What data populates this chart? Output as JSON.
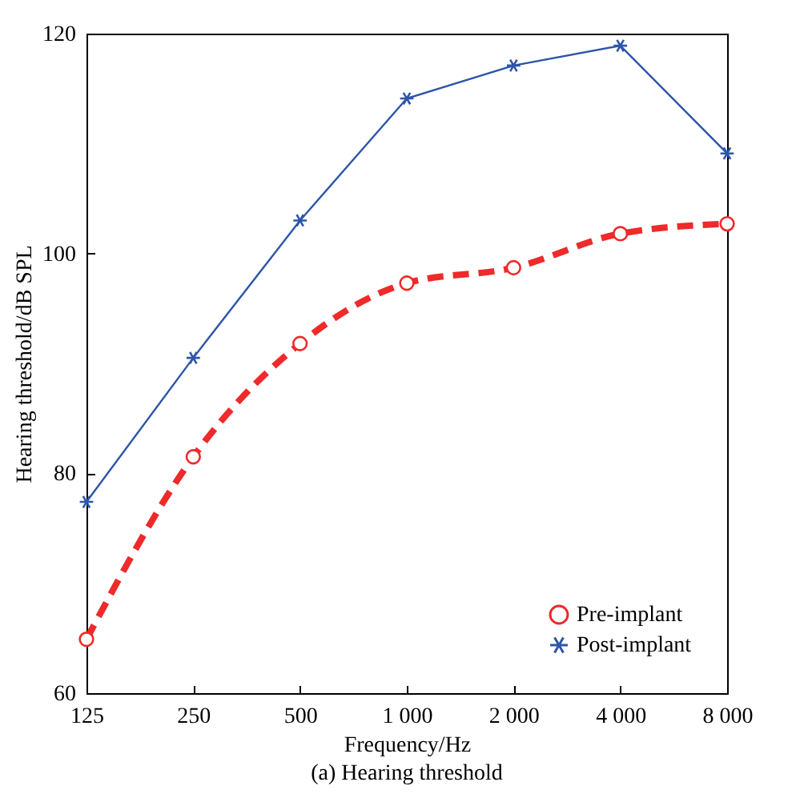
{
  "chart_data": {
    "type": "line",
    "title": "(a) Hearing threshold",
    "xlabel": "Frequency/Hz",
    "ylabel": "Hearing threshold/dB SPL",
    "categories": [
      "125",
      "250",
      "500",
      "1 000",
      "2 000",
      "4 000",
      "8 000"
    ],
    "series": [
      {
        "name": "Pre-implant",
        "color": "#ee2a2a",
        "marker": "circle",
        "line_style": "dashed",
        "values": [
          64.9,
          81.5,
          91.8,
          97.3,
          98.7,
          101.8,
          102.7
        ]
      },
      {
        "name": "Post-implant",
        "color": "#2d55a8",
        "marker": "cross",
        "line_style": "solid",
        "values": [
          77.4,
          90.5,
          103.0,
          114.1,
          117.1,
          118.9,
          109.1
        ]
      }
    ],
    "ylim": [
      60,
      120
    ],
    "yticks": [
      60,
      80,
      100,
      120
    ],
    "grid": false,
    "legend": "bottom right"
  }
}
